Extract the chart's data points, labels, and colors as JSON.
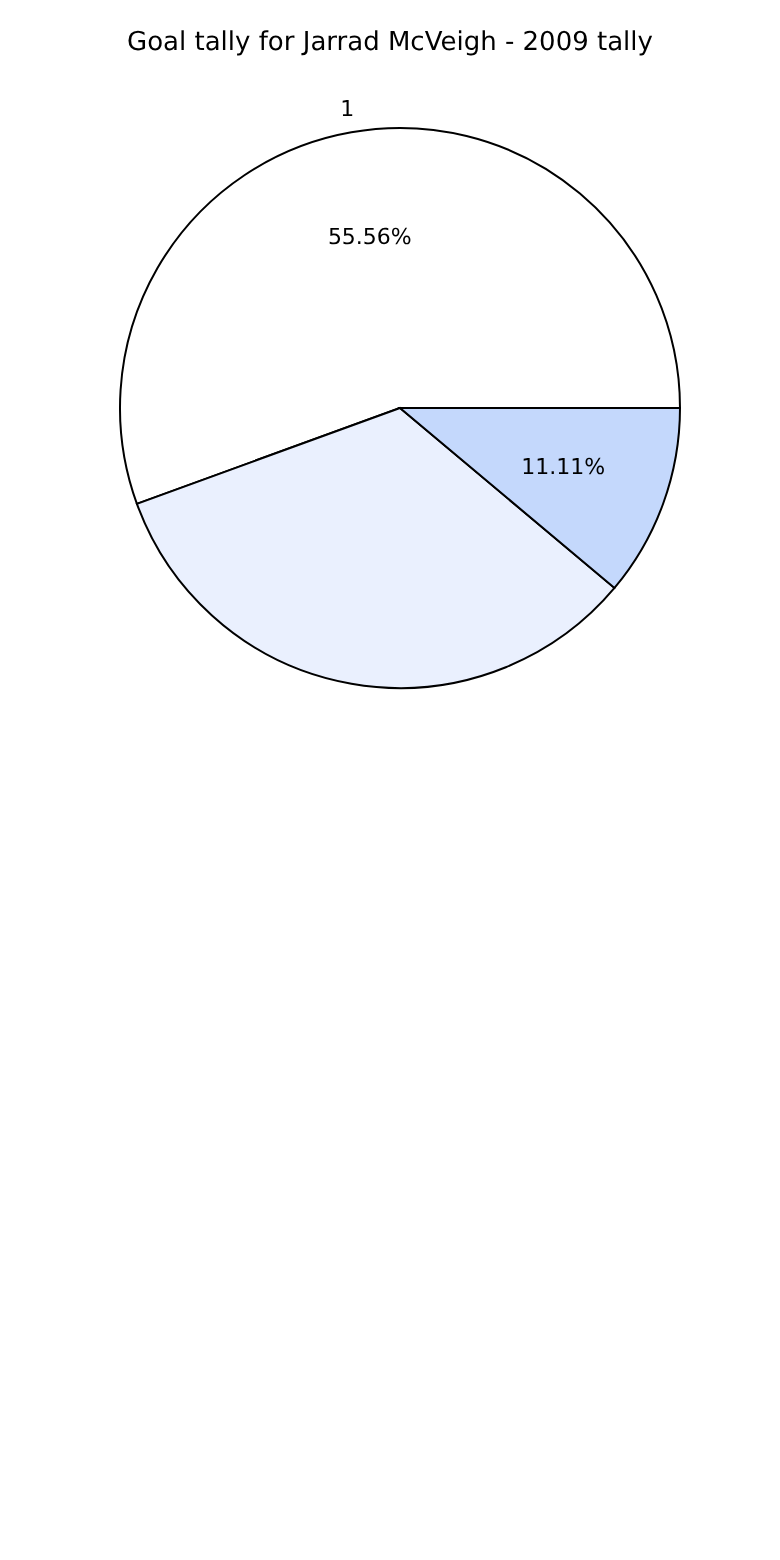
{
  "chart_data": {
    "type": "pie",
    "title": "Goal tally for Jarrad McVeigh - 2009 tally",
    "categories": [
      "1",
      null,
      null
    ],
    "values": [
      55.56,
      33.33,
      11.11
    ],
    "colors": [
      "#ffffff",
      "#eaf0fe",
      "#c4d8fc"
    ],
    "value_labels": [
      "55.56%",
      null,
      "11.11%"
    ],
    "legend": false
  }
}
